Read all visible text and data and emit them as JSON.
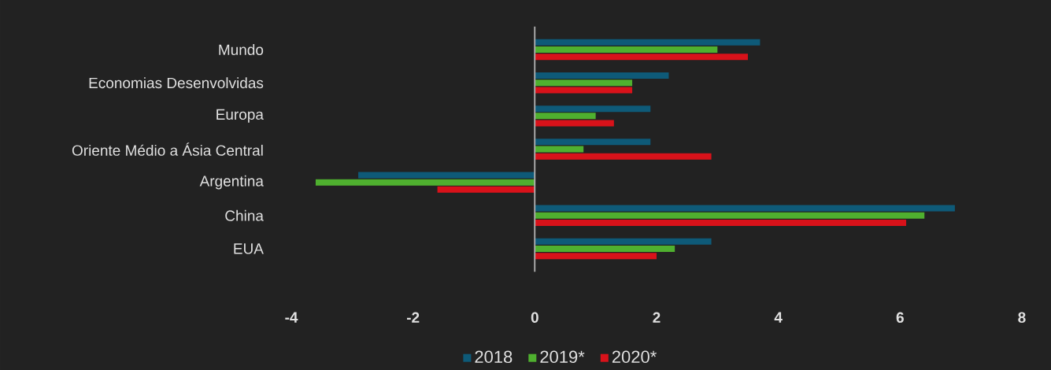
{
  "chart_data": {
    "type": "bar",
    "orientation": "horizontal",
    "categories": [
      "Mundo",
      "Economias Desenvolvidas",
      "Europa",
      "Oriente Médio a Ásia Central",
      "Argentina",
      "China",
      "EUA"
    ],
    "series": [
      {
        "name": "2018",
        "color": "#0e5a78",
        "values": [
          3.7,
          2.2,
          1.9,
          1.9,
          -2.9,
          6.9,
          2.9
        ]
      },
      {
        "name": "2019*",
        "color": "#4fb02f",
        "values": [
          3.0,
          1.6,
          1.0,
          0.8,
          -3.6,
          6.4,
          2.3
        ]
      },
      {
        "name": "2020*",
        "color": "#d8121a",
        "values": [
          3.5,
          1.6,
          1.3,
          2.9,
          -1.6,
          6.1,
          2.0
        ]
      }
    ],
    "xlim": [
      -4,
      8
    ],
    "xticks": [
      -4,
      -2,
      0,
      2,
      4,
      6,
      8
    ],
    "ref_lines": [
      {
        "axis": "x",
        "value": 0,
        "color": "#b0b0b0"
      }
    ],
    "grid": false,
    "legend": "bottom"
  }
}
